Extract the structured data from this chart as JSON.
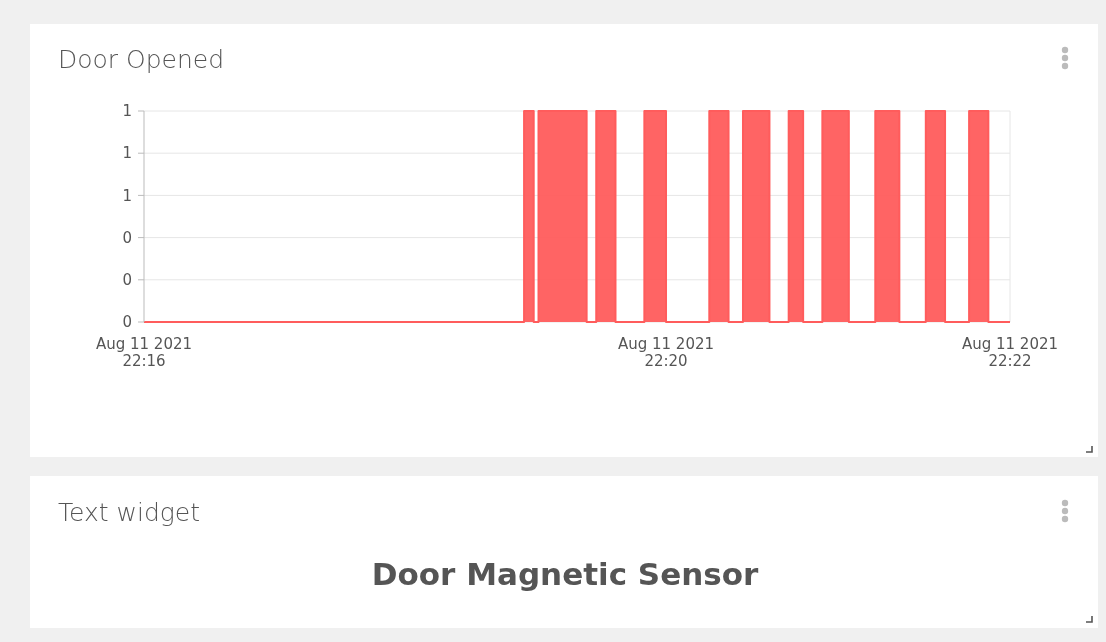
{
  "chart_data": [
    {
      "type": "area",
      "title": "Door Opened",
      "xlim": [
        "2021-08-11T22:16:00",
        "2021-08-11T22:22:00"
      ],
      "xticks": [
        {
          "value": "2021-08-11T22:16:00",
          "label": "Aug 11 2021\n22:16"
        },
        {
          "value": "2021-08-11T22:19:37",
          "label": "Aug 11 2021\n22:20"
        },
        {
          "value": "2021-08-11T22:22:00",
          "label": "Aug 11 2021\n22:22"
        }
      ],
      "ylim": [
        0,
        1
      ],
      "yticks": [
        0,
        {
          "value": 0.2,
          "label": "0"
        },
        {
          "value": 0.4,
          "label": "0"
        },
        {
          "value": 0.6,
          "label": "1"
        },
        {
          "value": 0.8,
          "label": "1"
        },
        1
      ],
      "grid": "y",
      "series": [
        {
          "color": "#ff5c5c",
          "x": [
            "2021-08-11T22:16:00",
            "2021-08-11T22:18:38",
            "2021-08-11T22:18:38",
            "2021-08-11T22:18:42",
            "2021-08-11T22:18:42",
            "2021-08-11T22:18:44",
            "2021-08-11T22:18:44",
            "2021-08-11T22:19:04",
            "2021-08-11T22:19:04",
            "2021-08-11T22:19:08",
            "2021-08-11T22:19:08",
            "2021-08-11T22:19:16",
            "2021-08-11T22:19:16",
            "2021-08-11T22:19:28",
            "2021-08-11T22:19:28",
            "2021-08-11T22:19:37",
            "2021-08-11T22:19:37",
            "2021-08-11T22:19:55",
            "2021-08-11T22:19:55",
            "2021-08-11T22:20:03",
            "2021-08-11T22:20:03",
            "2021-08-11T22:20:09",
            "2021-08-11T22:20:09",
            "2021-08-11T22:20:20",
            "2021-08-11T22:20:20",
            "2021-08-11T22:20:28",
            "2021-08-11T22:20:28",
            "2021-08-11T22:20:34",
            "2021-08-11T22:20:34",
            "2021-08-11T22:20:42",
            "2021-08-11T22:20:42",
            "2021-08-11T22:20:53",
            "2021-08-11T22:20:53",
            "2021-08-11T22:21:04",
            "2021-08-11T22:21:04",
            "2021-08-11T22:21:14",
            "2021-08-11T22:21:14",
            "2021-08-11T22:21:25",
            "2021-08-11T22:21:25",
            "2021-08-11T22:21:33",
            "2021-08-11T22:21:33",
            "2021-08-11T22:21:43",
            "2021-08-11T22:21:43",
            "2021-08-11T22:21:51",
            "2021-08-11T22:21:51",
            "2021-08-11T22:22:00"
          ],
          "values": [
            0,
            0,
            1,
            1,
            0,
            0,
            1,
            1,
            0,
            0,
            1,
            1,
            0,
            0,
            1,
            1,
            0,
            0,
            1,
            1,
            0,
            0,
            1,
            1,
            0,
            0,
            1,
            1,
            0,
            0,
            1,
            1,
            0,
            0,
            1,
            1,
            0,
            0,
            1,
            1,
            0,
            0,
            1,
            1,
            0,
            0
          ]
        }
      ]
    },
    {
      "type": "other",
      "title": "Text widget",
      "annotations": [
        "Door Magnetic Sensor"
      ]
    }
  ]
}
